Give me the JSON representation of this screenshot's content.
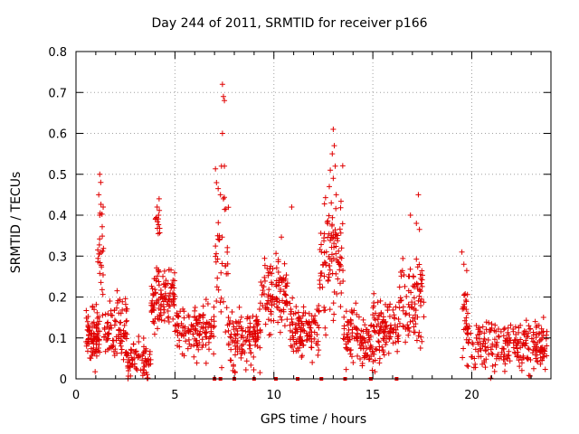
{
  "chart_data": {
    "type": "scatter",
    "title": "Day 244 of 2011, SRMTID for receiver p166",
    "xlabel": "GPS time / hours",
    "ylabel": "SRMTID / TECUs",
    "xlim": [
      0,
      24
    ],
    "ylim": [
      0,
      0.8
    ],
    "xticks": [
      0,
      5,
      10,
      15,
      20
    ],
    "yticks": [
      0,
      0.1,
      0.2,
      0.3,
      0.4,
      0.5,
      0.6,
      0.7,
      0.8
    ],
    "grid": true,
    "marker": "+",
    "color": "#e00000",
    "series": [
      {
        "name": "SRMTID",
        "clusters": [
          {
            "x": [
              0.5,
              1.2
            ],
            "base": 0.1,
            "spread": 0.07,
            "n": 90
          },
          {
            "x": [
              1.1,
              1.4
            ],
            "base": 0.3,
            "spread": 0.12,
            "n": 25
          },
          {
            "x": [
              1.4,
              2.6
            ],
            "base": 0.12,
            "spread": 0.08,
            "n": 90
          },
          {
            "x": [
              2.5,
              3.8
            ],
            "base": 0.05,
            "spread": 0.05,
            "n": 80
          },
          {
            "x": [
              3.8,
              5.0
            ],
            "base": 0.2,
            "spread": 0.07,
            "n": 110
          },
          {
            "x": [
              4.0,
              4.3
            ],
            "base": 0.38,
            "spread": 0.05,
            "n": 12
          },
          {
            "x": [
              5.0,
              7.0
            ],
            "base": 0.12,
            "spread": 0.06,
            "n": 130
          },
          {
            "x": [
              7.0,
              7.7
            ],
            "base": 0.3,
            "spread": 0.2,
            "n": 40
          },
          {
            "x": [
              7.7,
              9.3
            ],
            "base": 0.1,
            "spread": 0.07,
            "n": 120
          },
          {
            "x": [
              9.3,
              10.7
            ],
            "base": 0.2,
            "spread": 0.1,
            "n": 110
          },
          {
            "x": [
              10.7,
              12.3
            ],
            "base": 0.12,
            "spread": 0.07,
            "n": 120
          },
          {
            "x": [
              12.3,
              13.5
            ],
            "base": 0.3,
            "spread": 0.15,
            "n": 100
          },
          {
            "x": [
              13.5,
              15.0
            ],
            "base": 0.1,
            "spread": 0.07,
            "n": 110
          },
          {
            "x": [
              15.0,
              16.3
            ],
            "base": 0.12,
            "spread": 0.08,
            "n": 100
          },
          {
            "x": [
              16.3,
              17.6
            ],
            "base": 0.2,
            "spread": 0.12,
            "n": 90
          },
          {
            "x": [
              19.5,
              19.9
            ],
            "base": 0.15,
            "spread": 0.1,
            "n": 35
          },
          {
            "x": [
              19.9,
              23.8
            ],
            "base": 0.08,
            "spread": 0.06,
            "n": 240
          }
        ],
        "notable_points": [
          {
            "x": 1.2,
            "y": 0.5
          },
          {
            "x": 1.25,
            "y": 0.48
          },
          {
            "x": 1.15,
            "y": 0.45
          },
          {
            "x": 1.2,
            "y": 0.4
          },
          {
            "x": 4.2,
            "y": 0.44
          },
          {
            "x": 4.1,
            "y": 0.42
          },
          {
            "x": 7.4,
            "y": 0.72
          },
          {
            "x": 7.45,
            "y": 0.69
          },
          {
            "x": 7.5,
            "y": 0.68
          },
          {
            "x": 7.4,
            "y": 0.6
          },
          {
            "x": 7.35,
            "y": 0.52
          },
          {
            "x": 7.5,
            "y": 0.52
          },
          {
            "x": 7.3,
            "y": 0.45
          },
          {
            "x": 7.45,
            "y": 0.44
          },
          {
            "x": 10.9,
            "y": 0.42
          },
          {
            "x": 13.0,
            "y": 0.61
          },
          {
            "x": 13.05,
            "y": 0.57
          },
          {
            "x": 12.95,
            "y": 0.55
          },
          {
            "x": 13.1,
            "y": 0.52
          },
          {
            "x": 12.85,
            "y": 0.51
          },
          {
            "x": 13.0,
            "y": 0.49
          },
          {
            "x": 12.8,
            "y": 0.47
          },
          {
            "x": 13.15,
            "y": 0.45
          },
          {
            "x": 12.9,
            "y": 0.43
          },
          {
            "x": 17.3,
            "y": 0.45
          },
          {
            "x": 17.2,
            "y": 0.38
          },
          {
            "x": 16.9,
            "y": 0.4
          },
          {
            "x": 19.5,
            "y": 0.31
          },
          {
            "x": 19.6,
            "y": 0.28
          }
        ],
        "zero_row_x": [
          7.0,
          7.3,
          8.0,
          9.0,
          10.1,
          11.2,
          12.4,
          13.6,
          14.9,
          16.2
        ]
      }
    ]
  }
}
